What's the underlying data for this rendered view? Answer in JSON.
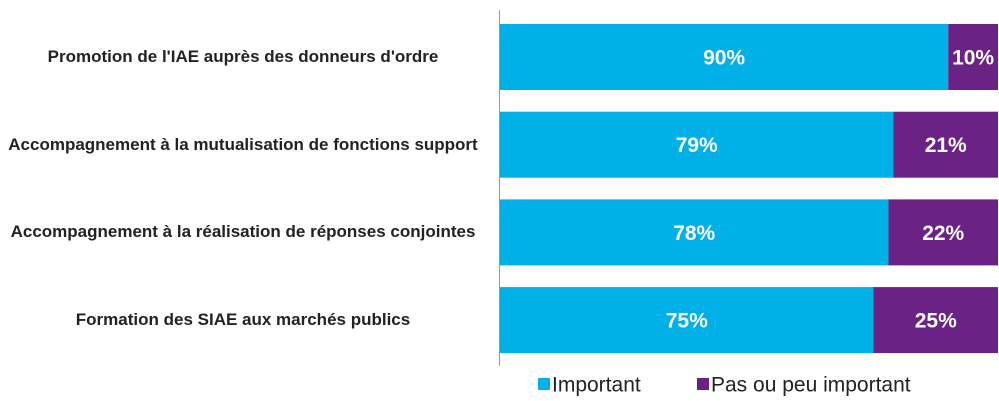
{
  "chart_data": {
    "type": "stacked_bar_horizontal",
    "categories": [
      "Promotion de l'IAE auprès des donneurs d'ordre",
      "Accompagnement à la mutualisation de fonctions support",
      "Accompagnement à la réalisation de réponses conjointes",
      "Formation des SIAE aux marchés publics"
    ],
    "series": [
      {
        "name": "Important",
        "color": "#00b0e6",
        "values": [
          90,
          79,
          78,
          75
        ],
        "value_labels": [
          "90%",
          "79%",
          "78%",
          "75%"
        ]
      },
      {
        "name": "Pas ou peu important",
        "color": "#6a2384",
        "values": [
          10,
          21,
          22,
          25
        ],
        "value_labels": [
          "10%",
          "21%",
          "22%",
          "25%"
        ]
      }
    ],
    "xlim": [
      0,
      100
    ],
    "legend": "bottom"
  }
}
